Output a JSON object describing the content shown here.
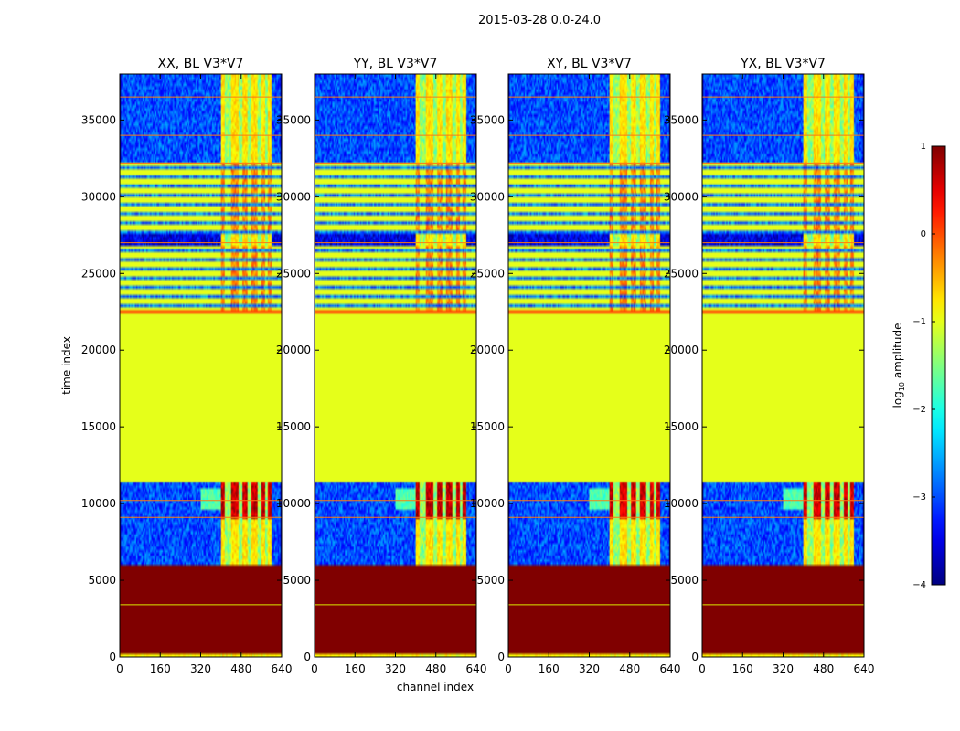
{
  "suptitle": "2015-03-28 0.0-24.0",
  "chart_data": {
    "type": "heatmap",
    "xlabel": "channel index",
    "ylabel": "time index",
    "xlim": [
      0,
      640
    ],
    "ylim": [
      0,
      38000
    ],
    "xticks": [
      0,
      160,
      320,
      480,
      640
    ],
    "yticks": [
      0,
      5000,
      10000,
      15000,
      20000,
      25000,
      30000,
      35000
    ],
    "panels": [
      {
        "title": "XX, BL V3*V7",
        "strength": 1.0
      },
      {
        "title": "YY, BL V3*V7",
        "strength": 1.15
      },
      {
        "title": "XY, BL V3*V7",
        "strength": 0.8
      },
      {
        "title": "YX, BL V3*V7",
        "strength": 0.85
      }
    ],
    "colorbar": {
      "label_prefix": "log",
      "label_sub": "10",
      "label_suffix": " amplitude",
      "range": [
        -4,
        1
      ],
      "ticks": [
        1,
        0,
        -1,
        -2,
        -3,
        -4
      ],
      "tick_labels": [
        "1",
        "0",
        "−1",
        "−2",
        "−3",
        "−4"
      ],
      "colormap": "jet"
    },
    "time_segments": [
      {
        "from": 0,
        "to": 300,
        "kind": "mix",
        "value": -1.0
      },
      {
        "from": 300,
        "to": 6000,
        "kind": "flat",
        "value": 1.0
      },
      {
        "from": 6000,
        "to": 11400,
        "kind": "noise",
        "value": -3.0
      },
      {
        "from": 11400,
        "to": 22300,
        "kind": "flat",
        "value": -1.0
      },
      {
        "from": 22300,
        "to": 22700,
        "kind": "flat",
        "value": 0.1
      },
      {
        "from": 22700,
        "to": 26900,
        "kind": "striped",
        "value": -1.0
      },
      {
        "from": 26900,
        "to": 27500,
        "kind": "noise",
        "value": -3.5
      },
      {
        "from": 27500,
        "to": 32200,
        "kind": "striped",
        "value": -1.0
      },
      {
        "from": 32200,
        "to": 38000,
        "kind": "noise",
        "value": -3.0
      }
    ],
    "bright_channel_band": [
      400,
      600
    ],
    "flagged_channels": [
      0,
      5,
      634,
      640
    ],
    "notable_time_lines": [
      3400,
      9100,
      10200,
      22500,
      27000,
      32200,
      34000,
      36500
    ]
  }
}
